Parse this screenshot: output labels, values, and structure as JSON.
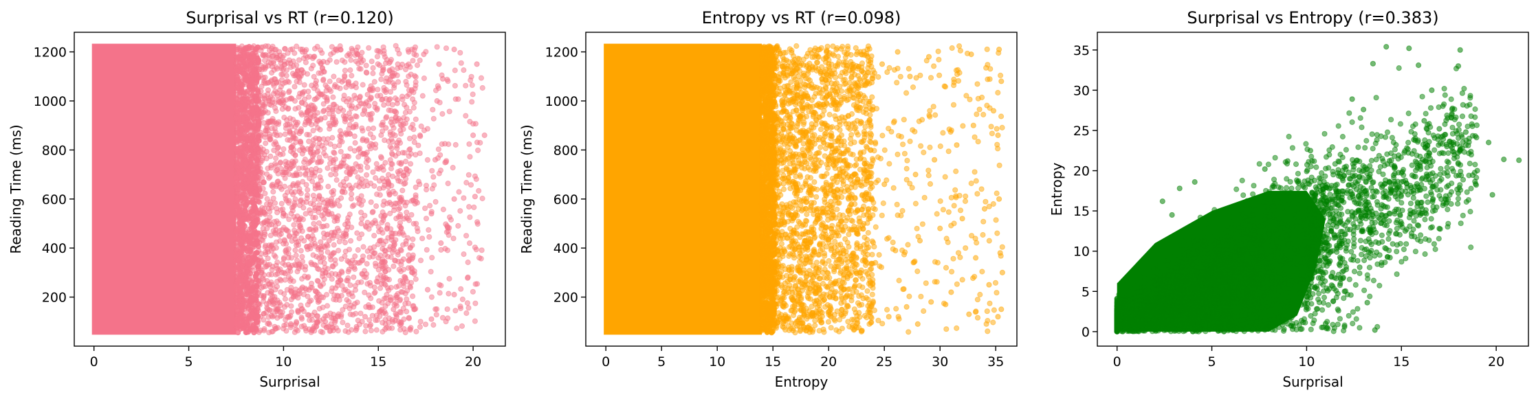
{
  "chart_data": [
    {
      "type": "scatter",
      "title": "Surprisal vs RT (r=0.120)",
      "xlabel": "Surprisal",
      "ylabel": "Reading Time (ms)",
      "xlim": [
        -1.04,
        21.7
      ],
      "ylim": [
        0,
        1280
      ],
      "xticks": [
        0,
        5,
        10,
        15,
        20
      ],
      "yticks": [
        200,
        400,
        600,
        800,
        1000,
        1200
      ],
      "color": "#f4738a",
      "alpha": 0.5,
      "correlation": 0.12,
      "n_points": "dense (~tens of thousands)",
      "dense_region": {
        "x": [
          0,
          7.5
        ],
        "y": [
          55,
          1225
        ]
      },
      "sample_points": [
        {
          "x": 8.5,
          "y": 1200
        },
        {
          "x": 9.4,
          "y": 1140
        },
        {
          "x": 10.2,
          "y": 1080
        },
        {
          "x": 11.0,
          "y": 1200
        },
        {
          "x": 12.1,
          "y": 1160
        },
        {
          "x": 13.0,
          "y": 1210
        },
        {
          "x": 13.9,
          "y": 1190
        },
        {
          "x": 15.1,
          "y": 1200
        },
        {
          "x": 16.6,
          "y": 1200
        },
        {
          "x": 17.4,
          "y": 1190
        },
        {
          "x": 18.2,
          "y": 1150
        },
        {
          "x": 18.4,
          "y": 1090
        },
        {
          "x": 19.0,
          "y": 1210
        },
        {
          "x": 20.2,
          "y": 1150
        },
        {
          "x": 18.1,
          "y": 1000
        },
        {
          "x": 16.0,
          "y": 990
        },
        {
          "x": 14.5,
          "y": 980
        },
        {
          "x": 12.6,
          "y": 960
        },
        {
          "x": 11.3,
          "y": 920
        },
        {
          "x": 15.4,
          "y": 890
        },
        {
          "x": 17.2,
          "y": 860
        },
        {
          "x": 20.0,
          "y": 860
        },
        {
          "x": 20.6,
          "y": 860
        },
        {
          "x": 18.0,
          "y": 760
        },
        {
          "x": 16.5,
          "y": 720
        },
        {
          "x": 13.5,
          "y": 700
        },
        {
          "x": 11.8,
          "y": 660
        },
        {
          "x": 15.6,
          "y": 620
        },
        {
          "x": 19.0,
          "y": 600
        },
        {
          "x": 20.1,
          "y": 610
        },
        {
          "x": 17.8,
          "y": 540
        },
        {
          "x": 16.2,
          "y": 480
        },
        {
          "x": 14.1,
          "y": 500
        },
        {
          "x": 12.4,
          "y": 430
        },
        {
          "x": 18.3,
          "y": 420
        },
        {
          "x": 15.0,
          "y": 360
        },
        {
          "x": 16.8,
          "y": 300
        },
        {
          "x": 13.0,
          "y": 270
        },
        {
          "x": 11.0,
          "y": 240
        },
        {
          "x": 17.6,
          "y": 230
        },
        {
          "x": 19.0,
          "y": 210
        },
        {
          "x": 15.8,
          "y": 150
        },
        {
          "x": 14.3,
          "y": 120
        },
        {
          "x": 17.8,
          "y": 110
        },
        {
          "x": 12.2,
          "y": 100
        },
        {
          "x": 16.2,
          "y": 90
        }
      ]
    },
    {
      "type": "scatter",
      "title": "Entropy vs RT (r=0.098)",
      "xlabel": "Entropy",
      "ylabel": "Reading Time (ms)",
      "xlim": [
        -1.8,
        36.9
      ],
      "ylim": [
        0,
        1280
      ],
      "xticks": [
        0,
        5,
        10,
        15,
        20,
        25,
        30,
        35
      ],
      "yticks": [
        200,
        400,
        600,
        800,
        1000,
        1200
      ],
      "color": "#ffa500",
      "alpha": 0.5,
      "correlation": 0.098,
      "n_points": "dense (~tens of thousands)",
      "dense_region": {
        "x": [
          0,
          14
        ],
        "y": [
          55,
          1225
        ]
      },
      "sample_points": [
        {
          "x": 22.5,
          "y": 1190
        },
        {
          "x": 24.8,
          "y": 1150
        },
        {
          "x": 26.2,
          "y": 1200
        },
        {
          "x": 27.3,
          "y": 1100
        },
        {
          "x": 29.0,
          "y": 1180
        },
        {
          "x": 30.4,
          "y": 1060
        },
        {
          "x": 32.8,
          "y": 1190
        },
        {
          "x": 35.3,
          "y": 1210
        },
        {
          "x": 35.5,
          "y": 1080
        },
        {
          "x": 34.8,
          "y": 960
        },
        {
          "x": 33.0,
          "y": 900
        },
        {
          "x": 31.5,
          "y": 820
        },
        {
          "x": 29.5,
          "y": 760
        },
        {
          "x": 27.8,
          "y": 700
        },
        {
          "x": 25.0,
          "y": 660
        },
        {
          "x": 23.6,
          "y": 620
        },
        {
          "x": 35.2,
          "y": 860
        },
        {
          "x": 35.3,
          "y": 600
        },
        {
          "x": 34.0,
          "y": 560
        },
        {
          "x": 32.0,
          "y": 520
        },
        {
          "x": 30.0,
          "y": 480
        },
        {
          "x": 28.2,
          "y": 430
        },
        {
          "x": 26.0,
          "y": 390
        },
        {
          "x": 24.2,
          "y": 340
        },
        {
          "x": 22.8,
          "y": 300
        },
        {
          "x": 33.2,
          "y": 360
        },
        {
          "x": 35.4,
          "y": 380
        },
        {
          "x": 35.6,
          "y": 300
        },
        {
          "x": 34.4,
          "y": 250
        },
        {
          "x": 31.0,
          "y": 220
        },
        {
          "x": 29.2,
          "y": 180
        },
        {
          "x": 27.0,
          "y": 160
        },
        {
          "x": 25.4,
          "y": 120
        },
        {
          "x": 35.5,
          "y": 150
        },
        {
          "x": 35.2,
          "y": 120
        },
        {
          "x": 32.6,
          "y": 130
        },
        {
          "x": 30.5,
          "y": 170
        },
        {
          "x": 28.0,
          "y": 90
        }
      ]
    },
    {
      "type": "scatter",
      "title": "Surprisal vs Entropy (r=0.383)",
      "xlabel": "Surprisal",
      "ylabel": "Entropy",
      "xlim": [
        -1.04,
        21.7
      ],
      "ylim": [
        -1.8,
        37.2
      ],
      "xticks": [
        0,
        5,
        10,
        15,
        20
      ],
      "yticks": [
        0,
        5,
        10,
        15,
        20,
        25,
        30,
        35
      ],
      "color": "#008000",
      "alpha": 0.5,
      "correlation": 0.383,
      "n_points": "dense (~tens of thousands)",
      "sample_points": [
        {
          "x": 14.2,
          "y": 35.4
        },
        {
          "x": 15.4,
          "y": 35.2
        },
        {
          "x": 18.1,
          "y": 35.0
        },
        {
          "x": 13.5,
          "y": 33.3
        },
        {
          "x": 15.9,
          "y": 33.1
        },
        {
          "x": 18.0,
          "y": 33.0
        },
        {
          "x": 12.4,
          "y": 28.9
        },
        {
          "x": 16.6,
          "y": 30.0
        },
        {
          "x": 13.0,
          "y": 27.6
        },
        {
          "x": 16.2,
          "y": 26.2
        },
        {
          "x": 17.0,
          "y": 25.2
        },
        {
          "x": 18.4,
          "y": 24.8
        },
        {
          "x": 19.6,
          "y": 23.5
        },
        {
          "x": 20.4,
          "y": 21.4
        },
        {
          "x": 21.2,
          "y": 21.3
        },
        {
          "x": 18.2,
          "y": 22.8
        },
        {
          "x": 17.4,
          "y": 23.0
        },
        {
          "x": 19.0,
          "y": 20.0
        },
        {
          "x": 19.8,
          "y": 17.0
        },
        {
          "x": 18.0,
          "y": 17.2
        },
        {
          "x": 16.0,
          "y": 14.5
        },
        {
          "x": 15.2,
          "y": 12.5
        },
        {
          "x": 17.0,
          "y": 12.8
        },
        {
          "x": 13.8,
          "y": 11.0
        },
        {
          "x": 14.4,
          "y": 9.2
        },
        {
          "x": 12.8,
          "y": 8.0
        },
        {
          "x": 12.0,
          "y": 5.0
        },
        {
          "x": 13.2,
          "y": 3.6
        },
        {
          "x": 11.0,
          "y": 1.0
        },
        {
          "x": 12.0,
          "y": 0.6
        },
        {
          "x": 13.6,
          "y": 0.2
        },
        {
          "x": 10.2,
          "y": 22.5
        },
        {
          "x": 9.0,
          "y": 21.2
        },
        {
          "x": 7.8,
          "y": 20.2
        },
        {
          "x": 2.4,
          "y": 16.2
        },
        {
          "x": 3.3,
          "y": 17.8
        },
        {
          "x": 4.1,
          "y": 18.6
        },
        {
          "x": 2.9,
          "y": 14.5
        }
      ]
    }
  ]
}
